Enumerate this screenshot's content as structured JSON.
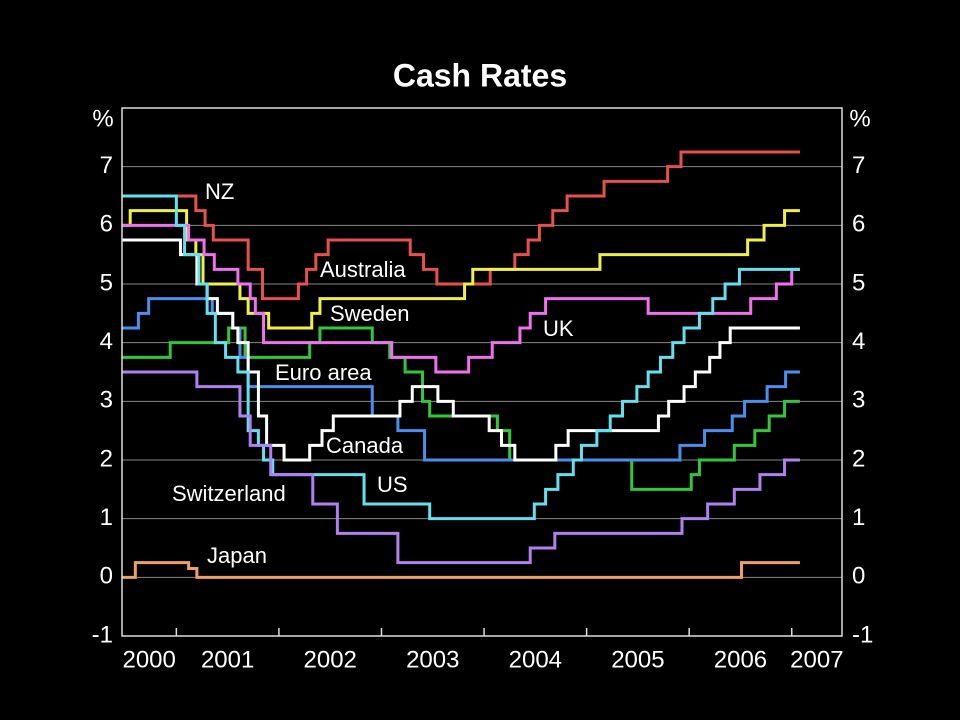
{
  "chart_data": {
    "type": "line",
    "step": "after",
    "title": "Cash Rates",
    "ylabel": "%",
    "xlim": [
      2000.47,
      2007.49
    ],
    "xticks": [
      2001,
      2002,
      2003,
      2004,
      2005,
      2006,
      2007
    ],
    "year_labels": [
      2000,
      2001,
      2002,
      2003,
      2004,
      2005,
      2006,
      2007
    ],
    "ylim": [
      -1,
      8
    ],
    "yticks": [
      -1,
      0,
      1,
      2,
      3,
      4,
      5,
      6,
      7
    ],
    "grid": true,
    "series": [
      {
        "name": "NZ",
        "color": "#e8504c",
        "x": [
          2000.47,
          2001.19,
          2001.28,
          2001.36,
          2001.7,
          2001.84,
          2002.19,
          2002.27,
          2002.36,
          2002.48,
          2003.28,
          2003.41,
          2003.54,
          2004.06,
          2004.3,
          2004.43,
          2004.54,
          2004.67,
          2004.81,
          2005.17,
          2005.79,
          2005.92,
          2007.08
        ],
        "values": [
          6.5,
          6.25,
          6.0,
          5.75,
          5.25,
          4.75,
          5.0,
          5.25,
          5.5,
          5.75,
          5.5,
          5.25,
          5.0,
          5.25,
          5.5,
          5.75,
          6.0,
          6.25,
          6.5,
          6.75,
          7.0,
          7.25,
          7.25
        ]
      },
      {
        "name": "Australia",
        "color": "#f0f040",
        "x": [
          2000.47,
          2000.55,
          2001.1,
          2001.19,
          2001.26,
          2001.62,
          2001.7,
          2001.9,
          2002.32,
          2002.4,
          2003.81,
          2003.89,
          2005.13,
          2006.57,
          2006.73,
          2006.93,
          2007.08
        ],
        "values": [
          6.0,
          6.25,
          5.75,
          5.5,
          5.0,
          4.75,
          4.5,
          4.25,
          4.5,
          4.75,
          5.0,
          5.25,
          5.5,
          5.75,
          6.0,
          6.25,
          6.25
        ]
      },
      {
        "name": "Sweden",
        "color": "#30c838",
        "x": [
          2000.47,
          2000.94,
          2001.51,
          2001.67,
          2002.3,
          2002.4,
          2002.91,
          2003.08,
          2003.23,
          2003.4,
          2003.47,
          2004.13,
          2004.25,
          2005.44,
          2006.02,
          2006.1,
          2006.44,
          2006.64,
          2006.78,
          2006.93,
          2007.08
        ],
        "values": [
          3.75,
          4.0,
          4.25,
          3.75,
          4.0,
          4.25,
          4.0,
          3.75,
          3.5,
          3.0,
          2.75,
          2.5,
          2.0,
          1.5,
          1.75,
          2.0,
          2.25,
          2.5,
          2.75,
          3.0,
          3.0
        ]
      },
      {
        "name": "UK",
        "color": "#f070f0",
        "x": [
          2000.47,
          2001.12,
          2001.27,
          2001.37,
          2001.6,
          2001.72,
          2001.77,
          2001.85,
          2003.1,
          2003.53,
          2003.85,
          2004.08,
          2004.35,
          2004.45,
          2004.6,
          2005.6,
          2006.6,
          2006.85,
          2007.0,
          2007.08
        ],
        "values": [
          6.0,
          5.75,
          5.5,
          5.25,
          5.0,
          4.75,
          4.5,
          4.0,
          3.75,
          3.5,
          3.75,
          4.0,
          4.25,
          4.5,
          4.75,
          4.5,
          4.75,
          5.0,
          5.25,
          5.25
        ]
      },
      {
        "name": "Euro area",
        "color": "#4890f0",
        "x": [
          2000.47,
          2000.63,
          2000.73,
          2001.35,
          2001.55,
          2001.62,
          2001.7,
          2002.91,
          2003.16,
          2003.42,
          2005.91,
          2006.15,
          2006.42,
          2006.54,
          2006.76,
          2006.94,
          2007.08
        ],
        "values": [
          4.25,
          4.5,
          4.75,
          4.5,
          4.25,
          3.75,
          3.25,
          2.75,
          2.5,
          2.0,
          2.25,
          2.5,
          2.75,
          3.0,
          3.25,
          3.5,
          3.5
        ]
      },
      {
        "name": "Canada",
        "color": "#ffffff",
        "x": [
          2000.47,
          2001.04,
          2001.2,
          2001.3,
          2001.4,
          2001.55,
          2001.6,
          2001.7,
          2001.8,
          2001.88,
          2002.05,
          2002.3,
          2002.42,
          2002.53,
          2003.18,
          2003.3,
          2003.55,
          2003.7,
          2004.05,
          2004.17,
          2004.3,
          2004.7,
          2004.82,
          2005.7,
          2005.8,
          2005.95,
          2006.06,
          2006.2,
          2006.3,
          2006.4,
          2007.08
        ],
        "values": [
          5.75,
          5.5,
          5.0,
          4.75,
          4.5,
          4.25,
          4.0,
          3.5,
          2.75,
          2.25,
          2.0,
          2.25,
          2.5,
          2.75,
          3.0,
          3.25,
          3.0,
          2.75,
          2.5,
          2.25,
          2.0,
          2.25,
          2.5,
          2.75,
          3.0,
          3.25,
          3.5,
          3.75,
          4.0,
          4.25,
          4.25
        ]
      },
      {
        "name": "US",
        "color": "#60e0f0",
        "x": [
          2000.47,
          2001.0,
          2001.08,
          2001.22,
          2001.3,
          2001.38,
          2001.48,
          2001.6,
          2001.7,
          2001.8,
          2001.85,
          2001.94,
          2002.83,
          2003.47,
          2004.49,
          2004.6,
          2004.72,
          2004.87,
          2004.95,
          2005.1,
          2005.23,
          2005.35,
          2005.49,
          2005.6,
          2005.72,
          2005.84,
          2005.95,
          2006.1,
          2006.23,
          2006.35,
          2006.49,
          2007.08
        ],
        "values": [
          6.5,
          6.0,
          5.5,
          5.0,
          4.5,
          4.0,
          3.75,
          3.5,
          2.5,
          2.25,
          2.0,
          1.75,
          1.25,
          1.0,
          1.25,
          1.5,
          1.75,
          2.0,
          2.25,
          2.5,
          2.75,
          3.0,
          3.25,
          3.5,
          3.75,
          4.0,
          4.25,
          4.5,
          4.75,
          5.0,
          5.25,
          5.25
        ]
      },
      {
        "name": "Switzerland",
        "color": "#b080f0",
        "x": [
          2000.47,
          2001.2,
          2001.62,
          2001.72,
          2001.92,
          2002.33,
          2002.57,
          2003.16,
          2004.45,
          2004.69,
          2005.93,
          2006.18,
          2006.44,
          2006.69,
          2006.93,
          2007.08
        ],
        "values": [
          3.5,
          3.25,
          2.75,
          2.25,
          1.75,
          1.25,
          0.75,
          0.25,
          0.5,
          0.75,
          1.0,
          1.25,
          1.5,
          1.75,
          2.0,
          2.0
        ]
      },
      {
        "name": "Japan",
        "color": "#f0a060",
        "x": [
          2000.47,
          2000.6,
          2001.12,
          2001.2,
          2006.51,
          2007.08
        ],
        "values": [
          0,
          0.25,
          0.15,
          0,
          0.25,
          0.25
        ]
      }
    ]
  }
}
